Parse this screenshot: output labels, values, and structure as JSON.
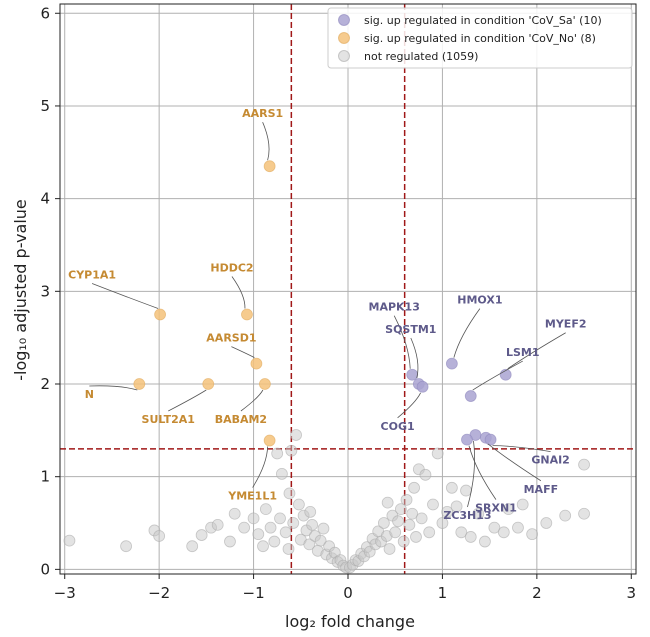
{
  "chart_data": {
    "type": "scatter",
    "xlabel": "log₂ fold change",
    "ylabel": "-log₁₀ adjusted p-value",
    "xlim": [
      -3.05,
      3.05
    ],
    "ylim": [
      -0.05,
      6.1
    ],
    "x_ticks": [
      -3,
      -2,
      -1,
      0,
      1,
      2,
      3
    ],
    "y_ticks": [
      0,
      1,
      2,
      3,
      4,
      5,
      6
    ],
    "grid": true,
    "legend_position": "top-right",
    "thresholds": {
      "x": [
        -0.6,
        0.6
      ],
      "y": 1.3
    },
    "colors": {
      "up_sa": "#a9a3d1",
      "up_no": "#f5c27a",
      "not_reg": "#c8c8c8",
      "up_sa_label": "#5e5a8a",
      "up_no_label": "#c58a32",
      "threshold": "#a01818"
    },
    "series": [
      {
        "name": "sig. up regulated in condition 'CoV_Sa' (10)",
        "points": [
          {
            "x": 1.1,
            "y": 2.22,
            "label": "HMOX1"
          },
          {
            "x": 0.68,
            "y": 2.1,
            "label": "MAPK13"
          },
          {
            "x": 0.75,
            "y": 2.0,
            "label": "SQSTM1"
          },
          {
            "x": 0.79,
            "y": 1.97,
            "label": "COG1"
          },
          {
            "x": 1.67,
            "y": 2.1,
            "label": "MYEF2"
          },
          {
            "x": 1.3,
            "y": 1.87,
            "label": "LSM1"
          },
          {
            "x": 1.35,
            "y": 1.45,
            "label": "ZC3H13"
          },
          {
            "x": 1.26,
            "y": 1.4,
            "label": "SRXN1"
          },
          {
            "x": 1.46,
            "y": 1.42,
            "label": "MAFF"
          },
          {
            "x": 1.51,
            "y": 1.4,
            "label": "GNAI2"
          }
        ]
      },
      {
        "name": "sig. up regulated in condition 'CoV_No' (8)",
        "points": [
          {
            "x": -0.83,
            "y": 4.35,
            "label": "AARS1"
          },
          {
            "x": -1.99,
            "y": 2.75,
            "label": "CYP1A1"
          },
          {
            "x": -1.07,
            "y": 2.75,
            "label": "HDDC2"
          },
          {
            "x": -0.97,
            "y": 2.22,
            "label": "AARSD1"
          },
          {
            "x": -2.21,
            "y": 2.0,
            "label": "N"
          },
          {
            "x": -1.48,
            "y": 2.0,
            "label": "SULT2A1"
          },
          {
            "x": -0.88,
            "y": 2.0,
            "label": "BABAM2"
          },
          {
            "x": -0.83,
            "y": 1.39,
            "label": "YME1L1"
          }
        ]
      },
      {
        "name": "not regulated (1059)",
        "points": [
          {
            "x": -2.95,
            "y": 0.31
          },
          {
            "x": -2.35,
            "y": 0.25
          },
          {
            "x": -2.05,
            "y": 0.42
          },
          {
            "x": -2.0,
            "y": 0.36
          },
          {
            "x": -1.65,
            "y": 0.25
          },
          {
            "x": -1.55,
            "y": 0.37
          },
          {
            "x": -1.45,
            "y": 0.45
          },
          {
            "x": -1.38,
            "y": 0.48
          },
          {
            "x": -1.25,
            "y": 0.3
          },
          {
            "x": -1.2,
            "y": 0.6
          },
          {
            "x": -1.1,
            "y": 0.45
          },
          {
            "x": -1.0,
            "y": 0.55
          },
          {
            "x": -0.95,
            "y": 0.38
          },
          {
            "x": -0.9,
            "y": 0.25
          },
          {
            "x": -0.87,
            "y": 0.65
          },
          {
            "x": -0.82,
            "y": 0.45
          },
          {
            "x": -0.78,
            "y": 0.3
          },
          {
            "x": -0.75,
            "y": 1.25
          },
          {
            "x": -0.72,
            "y": 0.55
          },
          {
            "x": -0.7,
            "y": 1.03
          },
          {
            "x": -0.66,
            "y": 0.4
          },
          {
            "x": -0.63,
            "y": 0.22
          },
          {
            "x": -0.6,
            "y": 1.28
          },
          {
            "x": -0.58,
            "y": 0.5
          },
          {
            "x": -0.55,
            "y": 1.45
          },
          {
            "x": -0.52,
            "y": 0.7
          },
          {
            "x": -0.5,
            "y": 0.32
          },
          {
            "x": -0.47,
            "y": 0.58
          },
          {
            "x": -0.44,
            "y": 0.42
          },
          {
            "x": -0.41,
            "y": 0.27
          },
          {
            "x": -0.38,
            "y": 0.48
          },
          {
            "x": -0.35,
            "y": 0.36
          },
          {
            "x": -0.32,
            "y": 0.2
          },
          {
            "x": -0.29,
            "y": 0.31
          },
          {
            "x": -0.26,
            "y": 0.44
          },
          {
            "x": -0.23,
            "y": 0.16
          },
          {
            "x": -0.2,
            "y": 0.25
          },
          {
            "x": -0.17,
            "y": 0.12
          },
          {
            "x": -0.14,
            "y": 0.18
          },
          {
            "x": -0.11,
            "y": 0.08
          },
          {
            "x": -0.08,
            "y": 0.1
          },
          {
            "x": -0.05,
            "y": 0.04
          },
          {
            "x": -0.02,
            "y": 0.02
          },
          {
            "x": 0.02,
            "y": 0.02
          },
          {
            "x": 0.05,
            "y": 0.05
          },
          {
            "x": 0.08,
            "y": 0.1
          },
          {
            "x": 0.11,
            "y": 0.09
          },
          {
            "x": 0.14,
            "y": 0.17
          },
          {
            "x": 0.17,
            "y": 0.14
          },
          {
            "x": 0.2,
            "y": 0.24
          },
          {
            "x": 0.23,
            "y": 0.19
          },
          {
            "x": 0.26,
            "y": 0.33
          },
          {
            "x": 0.29,
            "y": 0.27
          },
          {
            "x": 0.32,
            "y": 0.41
          },
          {
            "x": 0.35,
            "y": 0.3
          },
          {
            "x": 0.38,
            "y": 0.5
          },
          {
            "x": 0.41,
            "y": 0.36
          },
          {
            "x": 0.44,
            "y": 0.22
          },
          {
            "x": 0.47,
            "y": 0.58
          },
          {
            "x": 0.5,
            "y": 0.4
          },
          {
            "x": 0.53,
            "y": 0.52
          },
          {
            "x": 0.56,
            "y": 0.65
          },
          {
            "x": 0.59,
            "y": 0.3
          },
          {
            "x": 0.62,
            "y": 0.75
          },
          {
            "x": 0.65,
            "y": 0.48
          },
          {
            "x": 0.68,
            "y": 0.6
          },
          {
            "x": 0.7,
            "y": 0.88
          },
          {
            "x": 0.72,
            "y": 0.35
          },
          {
            "x": 0.75,
            "y": 1.08
          },
          {
            "x": 0.78,
            "y": 0.55
          },
          {
            "x": 0.82,
            "y": 1.02
          },
          {
            "x": 0.86,
            "y": 0.4
          },
          {
            "x": 0.9,
            "y": 0.7
          },
          {
            "x": 0.95,
            "y": 1.25
          },
          {
            "x": 1.0,
            "y": 0.5
          },
          {
            "x": 1.05,
            "y": 0.62
          },
          {
            "x": 1.1,
            "y": 0.88
          },
          {
            "x": 1.15,
            "y": 0.68
          },
          {
            "x": 1.2,
            "y": 0.4
          },
          {
            "x": 1.25,
            "y": 0.85
          },
          {
            "x": 1.3,
            "y": 0.35
          },
          {
            "x": 1.38,
            "y": 0.6
          },
          {
            "x": 1.45,
            "y": 0.3
          },
          {
            "x": 1.55,
            "y": 0.45
          },
          {
            "x": 1.65,
            "y": 0.4
          },
          {
            "x": 1.8,
            "y": 0.45
          },
          {
            "x": 1.95,
            "y": 0.38
          },
          {
            "x": 2.1,
            "y": 0.5
          },
          {
            "x": 2.3,
            "y": 0.58
          },
          {
            "x": 2.5,
            "y": 1.13
          },
          {
            "x": 2.5,
            "y": 0.6
          },
          {
            "x": -0.62,
            "y": 0.82
          },
          {
            "x": -0.4,
            "y": 0.62
          },
          {
            "x": 0.42,
            "y": 0.72
          },
          {
            "x": 1.7,
            "y": 0.65
          },
          {
            "x": 1.85,
            "y": 0.7
          }
        ]
      }
    ]
  }
}
